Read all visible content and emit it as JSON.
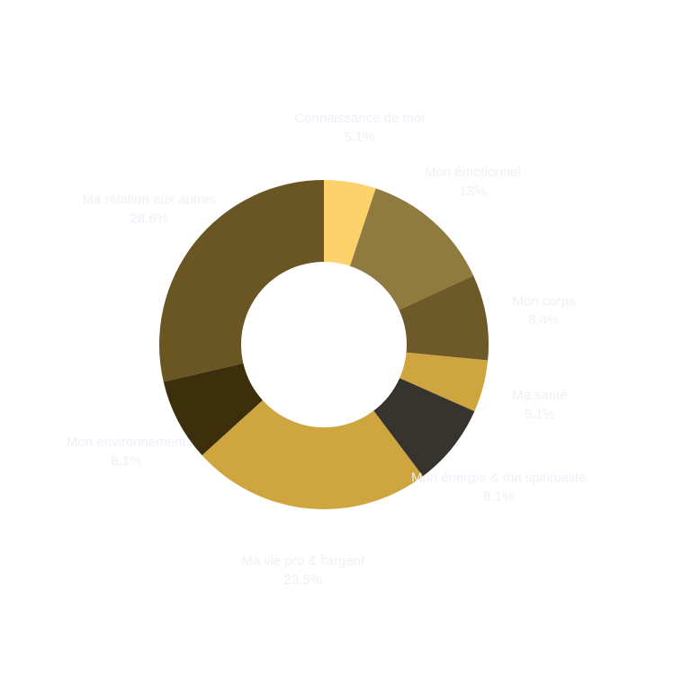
{
  "chart_data": {
    "type": "pie",
    "donut": true,
    "title": "",
    "legend": "none",
    "slices": [
      {
        "label": "Connaissance de moi",
        "value": 5.1,
        "value_label": "5.1%",
        "color": "#fdd26a"
      },
      {
        "label": "Mon émotionnel",
        "value": 13,
        "value_label": "13%",
        "color": "#8f7a3f"
      },
      {
        "label": "Mon corps",
        "value": 8.4,
        "value_label": "8.4%",
        "color": "#6e5a28"
      },
      {
        "label": "Ma santé",
        "value": 5.1,
        "value_label": "5.1%",
        "color": "#cfa540"
      },
      {
        "label": "Mon énergie & ma spiritualité",
        "value": 8.1,
        "value_label": "8.1%",
        "color": "#37332f"
      },
      {
        "label": "Ma vie pro & l'argent",
        "value": 23.5,
        "value_label": "23.5%",
        "color": "#cfa540"
      },
      {
        "label": "Mon environnement",
        "value": 8.1,
        "value_label": "8.1%",
        "color": "#3d2f0c"
      },
      {
        "label": "Ma relation aux autres",
        "value": 28.6,
        "value_label": "28.6%",
        "color": "#6a5622"
      }
    ]
  }
}
